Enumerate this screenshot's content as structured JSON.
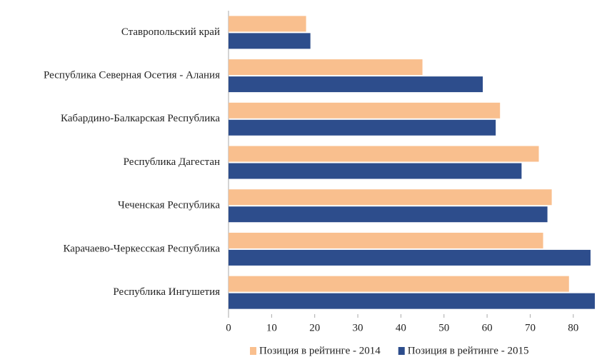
{
  "chart_data": {
    "type": "barh",
    "categories": [
      "Ставропольский край",
      "Республика Северная Осетия - Алания",
      "Кабардино-Балкарская Республика",
      "Республика Дагестан",
      "Чеченская Республика",
      "Карачаево-Черкесская Республика",
      "Республика Ингушетия"
    ],
    "series": [
      {
        "name": "Позиция в рейтинге - 2014",
        "color": "#f9bf8e",
        "values": [
          18,
          45,
          63,
          72,
          75,
          73,
          79
        ]
      },
      {
        "name": "Позиция в рейтинге - 2015",
        "color": "#2d4d8c",
        "values": [
          19,
          59,
          62,
          68,
          74,
          84,
          85
        ]
      }
    ],
    "xlim": [
      0,
      86
    ],
    "xticks": [
      0,
      10,
      20,
      30,
      40,
      50,
      60,
      70,
      80
    ],
    "legend": "bottom"
  }
}
